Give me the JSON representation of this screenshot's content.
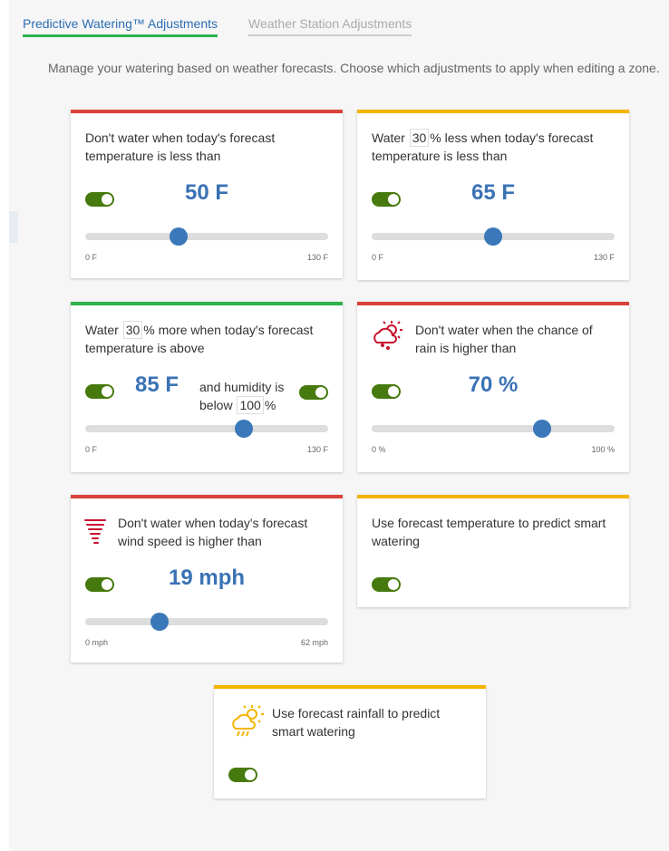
{
  "tabs": [
    "Predictive Watering™ Adjustments",
    "Weather Station Adjustments"
  ],
  "description": "Manage your watering based on weather forecasts. Choose which adjustments to apply when editing a zone.",
  "cards": [
    {
      "color": "#d9423a",
      "text": "Don't water when today's forecast temperature is less than",
      "toggle": true,
      "slider": {
        "value": 50,
        "value_label": "50 F",
        "min": {
          "value": 0,
          "label": "0 F"
        },
        "max": {
          "value": 130,
          "label": "130 F"
        }
      }
    },
    {
      "color": "#f4b400",
      "text_before": "Water",
      "input": 30,
      "text_after": "% less when today's forecast temperature is less than",
      "toggle": true,
      "slider": {
        "value": 65,
        "value_label": "65 F",
        "min": {
          "value": 0,
          "label": "0 F"
        },
        "max": {
          "value": 130,
          "label": "130 F"
        }
      }
    },
    {
      "color": "#2eb24b",
      "text_before": "Water",
      "input": 30,
      "text_after": "% more when today's forecast temperature is above",
      "toggle": true,
      "humidity_before": "and humidity is below",
      "humidity_input": 100,
      "humidity_after": "%",
      "humidity_toggle": true,
      "slider": {
        "value": 85,
        "value_label": "85 F",
        "min": {
          "value": 0,
          "label": "0 F"
        },
        "max": {
          "value": 130,
          "label": "130 F"
        }
      }
    },
    {
      "color": "#d9423a",
      "text": "Don't water when the chance of rain is higher than",
      "toggle": true,
      "slider": {
        "value": 70,
        "value_label": "70 %",
        "min": {
          "value": 0,
          "label": "0 %"
        },
        "max": {
          "value": 100,
          "label": "100 %"
        }
      }
    },
    {
      "color": "#d9423a",
      "text": "Don't water when today's forecast wind speed is higher than",
      "toggle": true,
      "slider": {
        "value": 19,
        "value_label": "19 mph",
        "min": {
          "value": 0,
          "label": "0 mph"
        },
        "max": {
          "value": 62,
          "label": "62 mph"
        }
      }
    },
    {
      "color": "#f4b400",
      "text": "Use forecast temperature to predict smart watering",
      "toggle": true
    },
    {
      "color": "#f4b400",
      "text": "Use forecast rainfall to predict smart watering",
      "toggle": true
    }
  ]
}
